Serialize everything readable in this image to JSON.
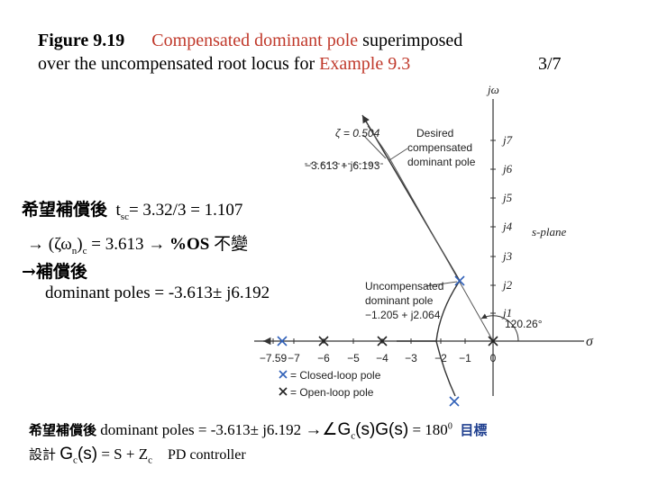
{
  "title": {
    "fig_num": "Figure 9.19",
    "part1": "Compensated dominant pole",
    "part2": " superimposed",
    "line2a": "over the uncompensated root locus for ",
    "line2b": "Example 9.3",
    "page": "3/7"
  },
  "text": {
    "l1_cn": "希望補償後",
    "l1_t": "t",
    "l1_sub": "sc",
    "l1_rest": "= 3.32/3 = 1.107",
    "l2_a": "→ (ζω",
    "l2_sub1": "n",
    "l2_b": ")",
    "l2_sub2": "c",
    "l2_c": " = 3.613 → ",
    "l2_os": "%OS",
    "l2_cn": " 不變",
    "l3": "→補償後",
    "l4": "dominant poles = -3.613± j6.192",
    "b1_cn": "希望補償後",
    "b1_text": " dominant poles = -3.613± j6.192 ",
    "b1_arrow": "→∠G",
    "b1_sub": "c",
    "b1_rest": "(s)G(s)",
    "b1_eq": " = 180",
    "b1_sup": "0",
    "b1_goal": "目標",
    "b2_cn": "設計",
    "b2_g": "G",
    "b2_sub": "c",
    "b2_s": "(s)",
    "b2_eq": " = S + Z",
    "b2_sub2": "c",
    "b2_pd": "PD controller"
  },
  "diagram": {
    "jw_label": "jω",
    "sigma_label": "σ",
    "splane": "s-plane",
    "zeta": "ζ = 0.504",
    "desired1": "Desired",
    "desired2": "compensated",
    "desired3": "dominant pole",
    "desired_val": "−3.613 + j6.193",
    "uncomp1": "Uncompensated",
    "uncomp2": "dominant pole",
    "uncomp_val": "−1.205 + j2.064",
    "angle": "120.26°",
    "legend_closed": "= Closed-loop pole",
    "legend_open": "= Open-loop pole",
    "xticks": [
      "−7.59",
      "−7",
      "−6",
      "−5",
      "−4",
      "−3",
      "−2",
      "−1",
      "0"
    ],
    "yticks": [
      "j1",
      "j2",
      "j3",
      "j4",
      "j5",
      "j6",
      "j7"
    ],
    "colors": {
      "closed_loop": "#3060b8",
      "open_loop": "#222222",
      "locus": "#333333"
    }
  }
}
